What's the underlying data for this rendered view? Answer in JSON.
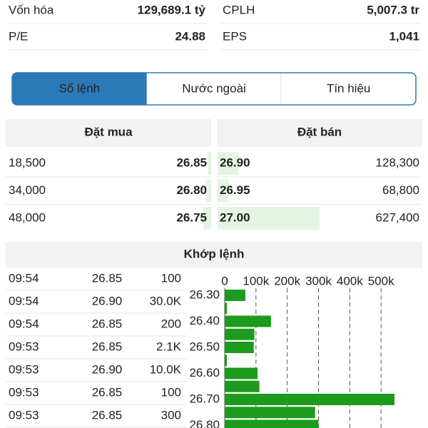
{
  "stats": [
    {
      "label": "Vốn hóa",
      "value": "129,689.1 tỷ"
    },
    {
      "label": "CPLH",
      "value": "5,007.3 tr"
    },
    {
      "label": "P/E",
      "value": "24.88"
    },
    {
      "label": "EPS",
      "value": "1,041"
    }
  ],
  "tabs": [
    "Sổ lệnh",
    "Nước ngoài",
    "Tín hiệu"
  ],
  "active_tab": 0,
  "order_book": {
    "buy_header": "Đặt mua",
    "sell_header": "Đặt bán",
    "rows": [
      {
        "buy_volume": {
          "value": 18500,
          "label": "18,500"
        },
        "buy_price": "26.85",
        "sell_price": "26.90",
        "sell_volume": {
          "value": 128300,
          "label": "128,300"
        }
      },
      {
        "buy_volume": {
          "value": 34000,
          "label": "34,000"
        },
        "buy_price": "26.80",
        "sell_price": "26.95",
        "sell_volume": {
          "value": 68800,
          "label": "68,800"
        }
      },
      {
        "buy_volume": {
          "value": 48000,
          "label": "48,000"
        },
        "buy_price": "26.75",
        "sell_price": "27.00",
        "sell_volume": {
          "value": 627400,
          "label": "627,400"
        }
      }
    ]
  },
  "trades": {
    "title": "Khớp lệnh",
    "rows": [
      [
        "09:54",
        "26.85",
        "100"
      ],
      [
        "09:54",
        "26.90",
        "30.0K"
      ],
      [
        "09:54",
        "26.85",
        "200"
      ],
      [
        "09:53",
        "26.85",
        "2.1K"
      ],
      [
        "09:53",
        "26.90",
        "10.0K"
      ],
      [
        "09:53",
        "26.85",
        "100"
      ],
      [
        "09:53",
        "26.85",
        "300"
      ]
    ]
  },
  "chart_data": {
    "type": "bar",
    "orientation": "horizontal",
    "categories": [
      "26.30",
      null,
      "26.40",
      null,
      "26.50",
      null,
      "26.60",
      null,
      "26.70",
      null,
      "26.80"
    ],
    "values": [
      66000,
      7000,
      148000,
      95000,
      93000,
      7000,
      105000,
      111000,
      543000,
      289000,
      300000
    ],
    "color": "#1c9b1c",
    "xlim": [
      0,
      600000
    ],
    "xticks": [
      0,
      {
        "value": 100000,
        "label": "100k"
      },
      {
        "value": 200000,
        "label": "200k"
      },
      {
        "value": 300000,
        "label": "300k"
      },
      {
        "value": 400000,
        "label": "400k"
      },
      {
        "value": 500000,
        "label": "500k"
      }
    ],
    "grid": true
  }
}
